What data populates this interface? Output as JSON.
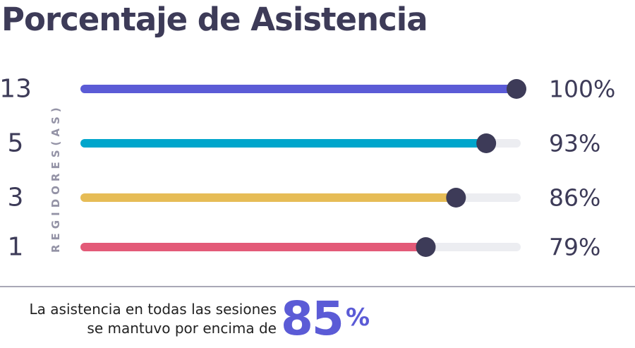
{
  "title": "Porcentaje de Asistencia",
  "chart_data": {
    "type": "bar",
    "orientation": "horizontal",
    "title": "Porcentaje de Asistencia",
    "ylabel": "REGIDORES(AS)",
    "xlim": [
      0,
      100
    ],
    "grid": false,
    "categories": [
      "13",
      "5",
      "3",
      "1"
    ],
    "values": [
      100,
      93,
      86,
      79
    ],
    "value_labels": [
      "100%",
      "93%",
      "86%",
      "79%"
    ],
    "colors": [
      "#5b5bd6",
      "#00a6cc",
      "#e6bc56",
      "#e35a78"
    ],
    "track_color": "#ecedf1",
    "marker_color": "#3d3b58"
  },
  "footnote": {
    "line1": "La asistencia en todas las sesiones",
    "line2": "se mantuvo por encima de",
    "value": "85",
    "unit": "%"
  }
}
